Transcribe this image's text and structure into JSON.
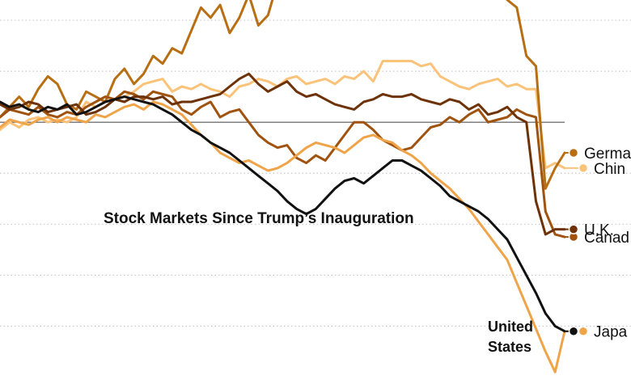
{
  "chart_data": {
    "type": "line",
    "title": "Stock Markets Since Trump’s Inauguration",
    "xlabel": "",
    "ylabel": "",
    "x": [
      1,
      2,
      3,
      4,
      5,
      6,
      7,
      8,
      9,
      10,
      11,
      12,
      13,
      14,
      15,
      16,
      17,
      18,
      19,
      20,
      21,
      22,
      23,
      24,
      25,
      26,
      27,
      28,
      29,
      30,
      31,
      32,
      33,
      34,
      35,
      36,
      37,
      38,
      39,
      40,
      41,
      42,
      43,
      44,
      45,
      46,
      47,
      48,
      49,
      50,
      51,
      52,
      53,
      54,
      55,
      56,
      57,
      58,
      59,
      60
    ],
    "ylim": [
      -11,
      6
    ],
    "grid_levels": [
      4,
      2,
      0,
      -2,
      -4,
      -6,
      -8
    ],
    "baseline": 0,
    "series": [
      {
        "name": "Germany",
        "label": "Germa",
        "color": "#b86f14",
        "values": [
          0.2,
          0.6,
          1.0,
          0.6,
          1.3,
          1.8,
          1.5,
          0.7,
          0.5,
          1.2,
          1.0,
          0.8,
          1.7,
          2.1,
          1.5,
          1.9,
          2.6,
          2.3,
          2.9,
          2.7,
          3.6,
          4.5,
          4.1,
          4.6,
          3.5,
          4.1,
          5.0,
          3.8,
          4.2,
          5.5,
          5.8,
          6.0,
          6.2,
          6.5,
          5.8,
          5.2,
          5.9,
          6.4,
          6.0,
          5.7,
          6.3,
          5.7,
          5.5,
          5.8,
          6.0,
          5.3,
          6.1,
          5.9,
          5.6,
          5.5,
          5.8,
          5.4,
          5.2,
          4.8,
          4.5,
          2.6,
          2.2,
          -2.6,
          -1.8,
          -1.2
        ],
        "end_y": -1.2
      },
      {
        "name": "China",
        "label": "Chin",
        "color": "#fbc27a",
        "values": [
          -0.3,
          0.0,
          -0.2,
          0.1,
          0.2,
          0.0,
          0.1,
          0.0,
          0.2,
          0.8,
          0.6,
          0.8,
          0.9,
          1.0,
          1.2,
          1.5,
          1.6,
          1.7,
          1.2,
          1.4,
          1.3,
          1.5,
          1.3,
          1.2,
          1.0,
          1.4,
          1.5,
          1.7,
          1.6,
          1.4,
          1.7,
          1.8,
          1.5,
          1.6,
          1.7,
          1.5,
          1.8,
          1.7,
          2.0,
          1.6,
          2.4,
          2.4,
          2.4,
          2.4,
          2.2,
          2.3,
          1.8,
          1.6,
          1.4,
          1.3,
          1.5,
          1.6,
          1.7,
          1.4,
          1.5,
          1.3,
          1.3,
          -1.8,
          -1.6,
          -1.8
        ],
        "end_y": -1.8
      },
      {
        "name": "U.K.",
        "label": "U.K.",
        "color": "#6e3208",
        "values": [
          0.7,
          0.5,
          0.6,
          0.8,
          0.7,
          0.4,
          0.5,
          0.6,
          0.7,
          0.3,
          0.4,
          0.6,
          0.9,
          0.8,
          1.0,
          1.0,
          0.9,
          1.0,
          0.7,
          0.8,
          0.8,
          0.9,
          1.0,
          1.1,
          1.4,
          1.7,
          1.9,
          1.5,
          1.2,
          1.4,
          1.6,
          1.2,
          1.0,
          1.1,
          0.9,
          0.7,
          0.6,
          0.5,
          0.8,
          0.9,
          1.1,
          1.0,
          1.0,
          1.1,
          0.9,
          0.8,
          0.7,
          0.9,
          0.8,
          0.5,
          0.7,
          0.3,
          0.4,
          0.6,
          0.2,
          0.0,
          -3.1,
          -4.4,
          -4.2,
          -4.2
        ],
        "end_y": -4.2
      },
      {
        "name": "Canada",
        "label": "Canad",
        "color": "#a0530f",
        "values": [
          0.2,
          0.5,
          0.4,
          0.3,
          0.6,
          0.3,
          0.2,
          0.4,
          0.3,
          0.6,
          0.8,
          1.0,
          0.9,
          1.2,
          1.1,
          0.9,
          1.2,
          1.1,
          1.0,
          0.5,
          0.3,
          0.6,
          0.8,
          0.2,
          0.4,
          0.5,
          0.0,
          -0.5,
          -0.8,
          -1.0,
          -0.9,
          -1.4,
          -1.6,
          -1.3,
          -1.5,
          -1.0,
          -0.5,
          0.0,
          0.0,
          -0.3,
          -0.7,
          -0.9,
          -1.1,
          -1.0,
          -0.6,
          -0.2,
          -0.1,
          0.2,
          0.0,
          0.3,
          0.5,
          0.0,
          0.1,
          0.2,
          0.5,
          0.3,
          0.2,
          -3.5,
          -4.4,
          -4.5
        ],
        "end_y": -4.5
      },
      {
        "name": "United States",
        "label": "United States",
        "color": "#111111",
        "values": [
          0.8,
          0.6,
          0.7,
          0.5,
          0.4,
          0.6,
          0.5,
          0.7,
          0.3,
          0.4,
          0.6,
          0.8,
          0.9,
          1.0,
          0.9,
          0.8,
          0.7,
          0.5,
          0.3,
          0.0,
          -0.3,
          -0.5,
          -0.8,
          -1.0,
          -1.2,
          -1.5,
          -1.8,
          -2.1,
          -2.4,
          -2.7,
          -3.1,
          -3.4,
          -3.6,
          -3.4,
          -3.0,
          -2.6,
          -2.3,
          -2.2,
          -2.4,
          -2.1,
          -1.8,
          -1.5,
          -1.5,
          -1.7,
          -1.9,
          -2.2,
          -2.5,
          -2.9,
          -3.1,
          -3.3,
          -3.5,
          -3.8,
          -4.2,
          -4.6,
          -5.3,
          -6.0,
          -6.7,
          -7.5,
          -8.0,
          -8.2
        ],
        "end_y": -8.2
      },
      {
        "name": "Japan",
        "label": "Japa",
        "color": "#f0a44a",
        "values": [
          -0.2,
          0.1,
          0.0,
          -0.1,
          0.1,
          0.2,
          0.0,
          0.2,
          0.1,
          0.0,
          0.3,
          0.2,
          0.4,
          0.6,
          0.7,
          0.5,
          0.8,
          0.7,
          0.5,
          0.3,
          -0.1,
          -0.5,
          -0.8,
          -1.2,
          -1.4,
          -1.6,
          -1.5,
          -1.7,
          -1.9,
          -1.8,
          -1.6,
          -1.3,
          -1.0,
          -0.8,
          -0.9,
          -1.0,
          -1.2,
          -0.9,
          -0.6,
          -0.5,
          -0.7,
          -0.8,
          -1.1,
          -1.3,
          -1.6,
          -2.0,
          -2.3,
          -2.6,
          -3.0,
          -3.4,
          -3.9,
          -4.4,
          -4.9,
          -5.4,
          -6.3,
          -7.2,
          -8.1,
          -9.0,
          -9.8,
          -8.2
        ],
        "end_y": -8.2
      }
    ]
  }
}
